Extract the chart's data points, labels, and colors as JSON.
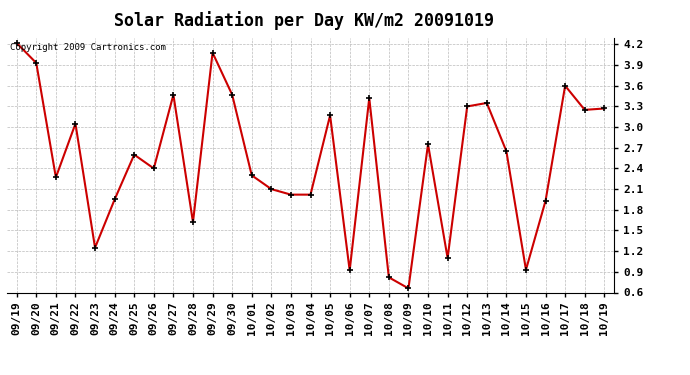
{
  "title": "Solar Radiation per Day KW/m2 20091019",
  "copyright": "Copyright 2009 Cartronics.com",
  "labels": [
    "09/19",
    "09/20",
    "09/21",
    "09/22",
    "09/23",
    "09/24",
    "09/25",
    "09/26",
    "09/27",
    "09/28",
    "09/29",
    "09/30",
    "10/01",
    "10/02",
    "10/03",
    "10/04",
    "10/05",
    "10/06",
    "10/07",
    "10/08",
    "10/09",
    "10/10",
    "10/11",
    "10/12",
    "10/13",
    "10/14",
    "10/15",
    "10/16",
    "10/17",
    "10/18",
    "10/19"
  ],
  "values": [
    4.22,
    3.93,
    2.27,
    3.05,
    1.25,
    1.95,
    2.6,
    2.4,
    3.47,
    1.62,
    4.08,
    3.47,
    2.3,
    2.1,
    2.02,
    2.02,
    3.17,
    0.92,
    3.42,
    0.82,
    0.66,
    2.75,
    1.1,
    3.3,
    3.35,
    2.65,
    0.93,
    1.93,
    3.6,
    3.25,
    3.27
  ],
  "line_color": "#cc0000",
  "marker_color": "#000000",
  "bg_color": "#ffffff",
  "grid_color": "#bbbbbb",
  "ylim": [
    0.6,
    4.3
  ],
  "yticks": [
    0.6,
    0.9,
    1.2,
    1.5,
    1.8,
    2.1,
    2.4,
    2.7,
    3.0,
    3.3,
    3.6,
    3.9,
    4.2
  ],
  "title_fontsize": 12,
  "tick_fontsize": 8,
  "copyright_fontsize": 6.5
}
